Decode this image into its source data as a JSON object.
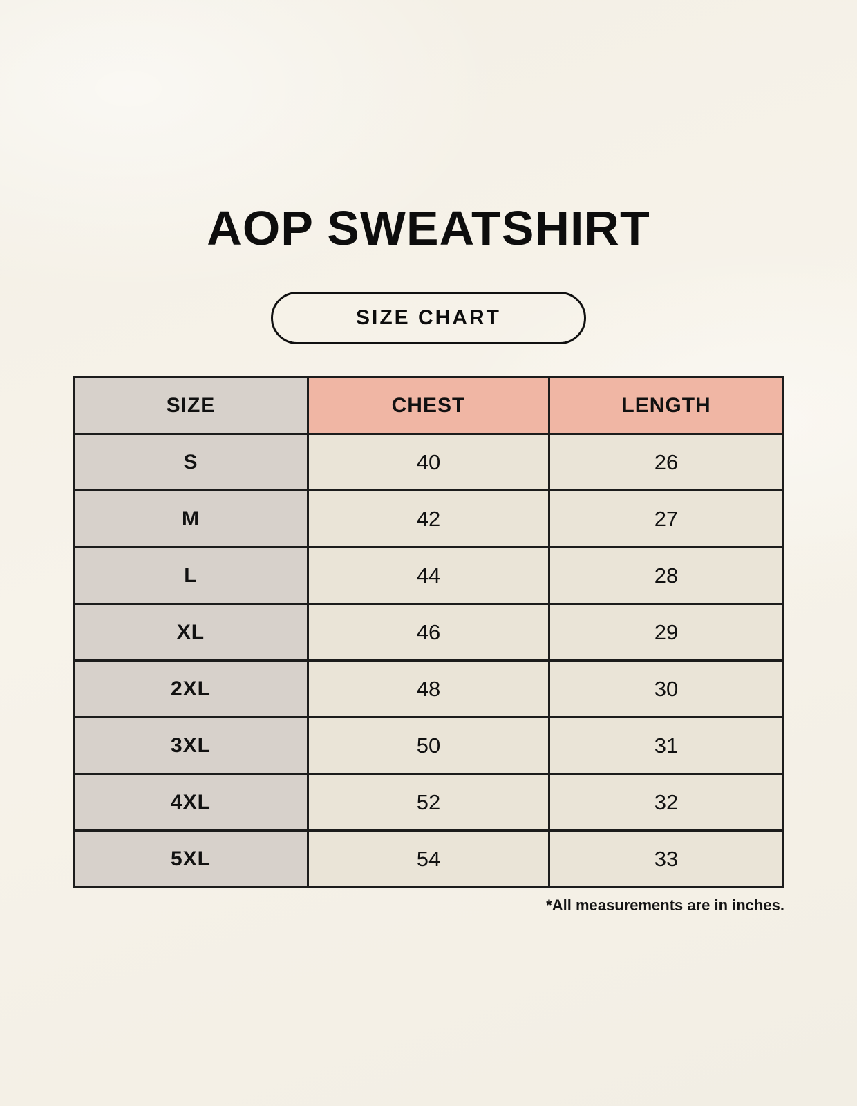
{
  "page": {
    "title": "AOP SWEATSHIRT",
    "badge_label": "SIZE CHART",
    "footnote": "*All measurements are in inches."
  },
  "colors": {
    "background": "#f7f3ea",
    "size_col_bg": "#d7d1cb",
    "measure_header_bg": "#f0b6a4",
    "data_cell_bg": "#eae4d7",
    "border": "#1c1c1c",
    "text": "#111111"
  },
  "chart_data": {
    "type": "table",
    "title": "AOP SWEATSHIRT — SIZE CHART",
    "columns": [
      "SIZE",
      "CHEST",
      "LENGTH"
    ],
    "rows": [
      [
        "S",
        40,
        26
      ],
      [
        "M",
        42,
        27
      ],
      [
        "L",
        44,
        28
      ],
      [
        "XL",
        46,
        29
      ],
      [
        "2XL",
        48,
        30
      ],
      [
        "3XL",
        50,
        31
      ],
      [
        "4XL",
        52,
        32
      ],
      [
        "5XL",
        54,
        33
      ]
    ],
    "units": "inches"
  }
}
